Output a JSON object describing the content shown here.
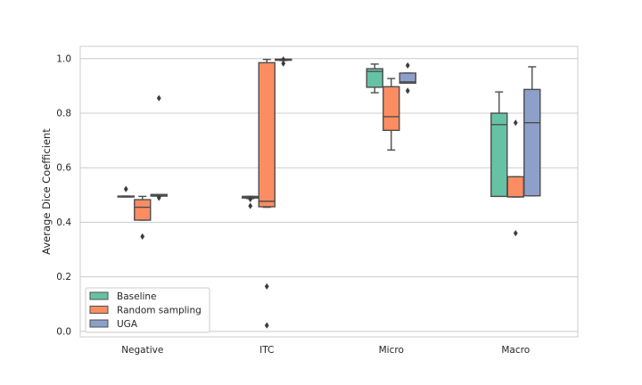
{
  "chart_data": {
    "type": "box",
    "title": "",
    "xlabel": "",
    "ylabel": "Average Dice Coefficient",
    "categories": [
      "Negative",
      "ITC",
      "Micro",
      "Macro"
    ],
    "ylim": [
      -0.02,
      1.045
    ],
    "yticks": [
      "0.0",
      "0.2",
      "0.4",
      "0.6",
      "0.8",
      "1.0"
    ],
    "grid": "horizontal",
    "legend_position": "lower-left",
    "series": [
      {
        "name": "Baseline",
        "color": "#66c2a5",
        "boxes": [
          {
            "whislo": 0.493,
            "q1": 0.493,
            "med": 0.494,
            "q3": 0.496,
            "whishi": 0.496,
            "fliers": [
              0.522
            ]
          },
          {
            "whislo": 0.487,
            "q1": 0.489,
            "med": 0.491,
            "q3": 0.495,
            "whishi": 0.495,
            "fliers": [
              0.46,
              0.485
            ]
          },
          {
            "whislo": 0.875,
            "q1": 0.895,
            "med": 0.953,
            "q3": 0.963,
            "whishi": 0.98,
            "fliers": []
          },
          {
            "whislo": 0.495,
            "q1": 0.495,
            "med": 0.758,
            "q3": 0.8,
            "whishi": 0.878,
            "fliers": []
          }
        ]
      },
      {
        "name": "Random sampling",
        "color": "#fc8d62",
        "boxes": [
          {
            "whislo": 0.408,
            "q1": 0.408,
            "med": 0.455,
            "q3": 0.483,
            "whishi": 0.495,
            "fliers": [
              0.348
            ]
          },
          {
            "whislo": 0.455,
            "q1": 0.457,
            "med": 0.477,
            "q3": 0.985,
            "whishi": 0.997,
            "fliers": [
              0.165,
              0.022
            ]
          },
          {
            "whislo": 0.665,
            "q1": 0.737,
            "med": 0.787,
            "q3": 0.897,
            "whishi": 0.927,
            "fliers": []
          },
          {
            "whislo": 0.493,
            "q1": 0.493,
            "med": 0.493,
            "q3": 0.567,
            "whishi": 0.567,
            "fliers": [
              0.765,
              0.36
            ]
          }
        ]
      },
      {
        "name": "UGA",
        "color": "#8da0cb",
        "boxes": [
          {
            "whislo": 0.496,
            "q1": 0.496,
            "med": 0.5,
            "q3": 0.502,
            "whishi": 0.502,
            "fliers": [
              0.855,
              0.49
            ]
          },
          {
            "whislo": 0.993,
            "q1": 0.994,
            "med": 0.996,
            "q3": 0.998,
            "whishi": 0.998,
            "fliers": [
              0.982,
              0.997
            ]
          },
          {
            "whislo": 0.91,
            "q1": 0.91,
            "med": 0.915,
            "q3": 0.947,
            "whishi": 0.947,
            "fliers": [
              0.975,
              0.882
            ]
          },
          {
            "whislo": 0.497,
            "q1": 0.497,
            "med": 0.765,
            "q3": 0.887,
            "whishi": 0.97,
            "fliers": []
          }
        ]
      }
    ]
  }
}
